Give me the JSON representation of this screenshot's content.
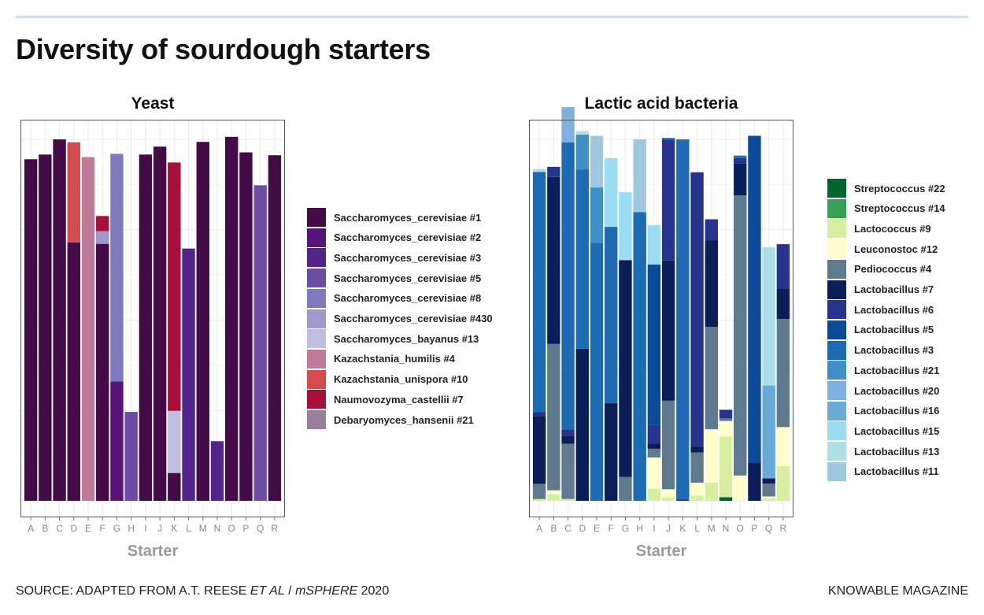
{
  "title": "Diversity of sourdough starters",
  "source": {
    "prefix": "SOURCE: ADAPTED FROM A.T. REESE ",
    "italic1": "ET AL",
    "mid": " / ",
    "italic2": "mSPHERE",
    "suffix": " 2020"
  },
  "publisher": "KNOWABLE MAGAZINE",
  "chart_data": [
    {
      "type": "bar",
      "stacked": true,
      "title": "Yeast",
      "xlabel": "Starter",
      "ylabel": "",
      "grid": true,
      "categories": [
        "A",
        "B",
        "C",
        "D",
        "E",
        "F",
        "G",
        "H",
        "I",
        "J",
        "K",
        "L",
        "M",
        "N",
        "O",
        "P",
        "Q",
        "R"
      ],
      "legend": [
        {
          "name": "Saccharomyces_cerevisiae #1",
          "color": "#440c47"
        },
        {
          "name": "Saccharomyces_cerevisiae #2",
          "color": "#581478"
        },
        {
          "name": "Saccharomyces_cerevisiae #3",
          "color": "#53248c"
        },
        {
          "name": "Saccharomyces_cerevisiae #5",
          "color": "#6b4ea3"
        },
        {
          "name": "Saccharomyces_cerevisiae #8",
          "color": "#8079bd"
        },
        {
          "name": "Saccharomyces_cerevisiae #430",
          "color": "#9e98cc"
        },
        {
          "name": "Saccharomyces_bayanus #13",
          "color": "#bfbde0"
        },
        {
          "name": "Kazachstania_humilis #4",
          "color": "#c07a98"
        },
        {
          "name": "Kazachstania_unispora #10",
          "color": "#d44c4c"
        },
        {
          "name": "Naumovozyma_castellii #7",
          "color": "#a80f3a"
        },
        {
          "name": "Debaryomyces_hansenii #21",
          "color": "#9b7d9c"
        }
      ],
      "stacks": [
        [
          {
            "s": 0,
            "v": 0.945
          }
        ],
        [
          {
            "s": 0,
            "v": 0.958
          }
        ],
        [
          {
            "s": 0,
            "v": 1.0
          }
        ],
        [
          {
            "s": 0,
            "v": 0.715
          },
          {
            "s": 8,
            "v": 0.277
          }
        ],
        [
          {
            "s": 7,
            "v": 0.951
          }
        ],
        [
          {
            "s": 0,
            "v": 0.711
          },
          {
            "s": 5,
            "v": 0.033
          },
          {
            "s": 4,
            "v": 0.003
          },
          {
            "s": 9,
            "v": 0.041
          }
        ],
        [
          {
            "s": 1,
            "v": 0.33
          },
          {
            "s": 4,
            "v": 0.63
          }
        ],
        [
          {
            "s": 3,
            "v": 0.246
          }
        ],
        [
          {
            "s": 0,
            "v": 0.958
          }
        ],
        [
          {
            "s": 0,
            "v": 0.98
          }
        ],
        [
          {
            "s": 0,
            "v": 0.077
          },
          {
            "s": 6,
            "v": 0.172
          },
          {
            "s": 9,
            "v": 0.687
          }
        ],
        [
          {
            "s": 2,
            "v": 0.698
          }
        ],
        [
          {
            "s": 0,
            "v": 0.993
          }
        ],
        [
          {
            "s": 2,
            "v": 0.165
          }
        ],
        [
          {
            "s": 0,
            "v": 1.007
          }
        ],
        [
          {
            "s": 0,
            "v": 0.964
          }
        ],
        [
          {
            "s": 3,
            "v": 0.873
          }
        ],
        [
          {
            "s": 0,
            "v": 0.956
          }
        ]
      ]
    },
    {
      "type": "bar",
      "stacked": true,
      "title": "Lactic acid bacteria",
      "xlabel": "Starter",
      "ylabel": "",
      "grid": true,
      "categories": [
        "A",
        "B",
        "C",
        "D",
        "E",
        "F",
        "G",
        "H",
        "I",
        "J",
        "K",
        "L",
        "M",
        "N",
        "O",
        "P",
        "Q",
        "R"
      ],
      "legend": [
        {
          "name": "Streptococcus #22",
          "color": "#00652e"
        },
        {
          "name": "Streptococcus #14",
          "color": "#36a054"
        },
        {
          "name": "Lactococcus #9",
          "color": "#d8eea0"
        },
        {
          "name": "Leuconostoc #12",
          "color": "#fffdcc"
        },
        {
          "name": "Pediococcus #4",
          "color": "#5f7a8e"
        },
        {
          "name": "Lactobacillus #7",
          "color": "#0b1e5a"
        },
        {
          "name": "Lactobacillus #6",
          "color": "#27348f"
        },
        {
          "name": "Lactobacillus #5",
          "color": "#0b4a9b"
        },
        {
          "name": "Lactobacillus #3",
          "color": "#1e6bb5"
        },
        {
          "name": "Lactobacillus #21",
          "color": "#3f8fc8"
        },
        {
          "name": "Lactobacillus #20",
          "color": "#7fb0e0"
        },
        {
          "name": "Lactobacillus #16",
          "color": "#6aaad6"
        },
        {
          "name": "Lactobacillus #15",
          "color": "#9cdcf2"
        },
        {
          "name": "Lactobacillus #13",
          "color": "#addfe6"
        },
        {
          "name": "Lactobacillus #11",
          "color": "#9fc7e0"
        }
      ],
      "stacks": [
        [
          {
            "s": 2,
            "v": 0.005
          },
          {
            "s": 4,
            "v": 0.042
          },
          {
            "s": 5,
            "v": 0.187
          },
          {
            "s": 6,
            "v": 0.012
          },
          {
            "s": 8,
            "v": 0.664
          },
          {
            "s": 13,
            "v": 0.008
          }
        ],
        [
          {
            "s": 2,
            "v": 0.019
          },
          {
            "s": 3,
            "v": 0.01
          },
          {
            "s": 4,
            "v": 0.405
          },
          {
            "s": 5,
            "v": 0.462
          },
          {
            "s": 6,
            "v": 0.028
          }
        ],
        [
          {
            "s": 2,
            "v": 0.005
          },
          {
            "s": 4,
            "v": 0.153
          },
          {
            "s": 5,
            "v": 0.022
          },
          {
            "s": 6,
            "v": 0.017
          },
          {
            "s": 8,
            "v": 0.795
          },
          {
            "s": 10,
            "v": 0.097
          }
        ],
        [
          {
            "s": 5,
            "v": 0.421
          },
          {
            "s": 8,
            "v": 0.496
          },
          {
            "s": 9,
            "v": 0.096
          },
          {
            "s": 13,
            "v": 0.01
          }
        ],
        [
          {
            "s": 8,
            "v": 0.714
          },
          {
            "s": 9,
            "v": 0.153
          },
          {
            "s": 14,
            "v": 0.143
          }
        ],
        [
          {
            "s": 5,
            "v": 0.27
          },
          {
            "s": 8,
            "v": 0.488
          },
          {
            "s": 12,
            "v": 0.19
          }
        ],
        [
          {
            "s": 4,
            "v": 0.066
          },
          {
            "s": 5,
            "v": 0.6
          },
          {
            "s": 12,
            "v": 0.188
          }
        ],
        [
          {
            "s": 8,
            "v": 0.799
          },
          {
            "s": 14,
            "v": 0.201
          }
        ],
        [
          {
            "s": 2,
            "v": 0.034
          },
          {
            "s": 3,
            "v": 0.086
          },
          {
            "s": 4,
            "v": 0.024
          },
          {
            "s": 5,
            "v": 0.014
          },
          {
            "s": 6,
            "v": 0.052
          },
          {
            "s": 7,
            "v": 0.444
          },
          {
            "s": 12,
            "v": 0.109
          }
        ],
        [
          {
            "s": 2,
            "v": 0.01
          },
          {
            "s": 3,
            "v": 0.022
          },
          {
            "s": 4,
            "v": 0.245
          },
          {
            "s": 5,
            "v": 0.388
          },
          {
            "s": 6,
            "v": 0.334
          },
          {
            "s": 8,
            "v": 0.005
          }
        ],
        [
          {
            "s": 7,
            "v": 0.005
          },
          {
            "s": 8,
            "v": 0.995
          }
        ],
        [
          {
            "s": 2,
            "v": 0.014
          },
          {
            "s": 3,
            "v": 0.036
          },
          {
            "s": 4,
            "v": 0.084
          },
          {
            "s": 5,
            "v": 0.017
          },
          {
            "s": 6,
            "v": 0.758
          }
        ],
        [
          {
            "s": 2,
            "v": 0.05
          },
          {
            "s": 3,
            "v": 0.148
          },
          {
            "s": 4,
            "v": 0.283
          },
          {
            "s": 5,
            "v": 0.24
          },
          {
            "s": 6,
            "v": 0.058
          }
        ],
        [
          {
            "s": 0,
            "v": 0.01
          },
          {
            "s": 2,
            "v": 0.168
          },
          {
            "s": 3,
            "v": 0.043
          },
          {
            "s": 4,
            "v": 0.007
          },
          {
            "s": 6,
            "v": 0.024
          }
        ],
        [
          {
            "s": 3,
            "v": 0.07
          },
          {
            "s": 4,
            "v": 0.775
          },
          {
            "s": 5,
            "v": 0.089
          },
          {
            "s": 6,
            "v": 0.014
          },
          {
            "s": 8,
            "v": 0.007
          }
        ],
        [
          {
            "s": 5,
            "v": 0.106
          },
          {
            "s": 7,
            "v": 0.904
          }
        ],
        [
          {
            "s": 2,
            "v": 0.007
          },
          {
            "s": 3,
            "v": 0.005
          },
          {
            "s": 4,
            "v": 0.036
          },
          {
            "s": 5,
            "v": 0.014
          },
          {
            "s": 11,
            "v": 0.257
          },
          {
            "s": 13,
            "v": 0.383
          }
        ],
        [
          {
            "s": 2,
            "v": 0.096
          },
          {
            "s": 3,
            "v": 0.108
          },
          {
            "s": 4,
            "v": 0.299
          },
          {
            "s": 5,
            "v": 0.084
          },
          {
            "s": 6,
            "v": 0.123
          }
        ]
      ]
    }
  ]
}
